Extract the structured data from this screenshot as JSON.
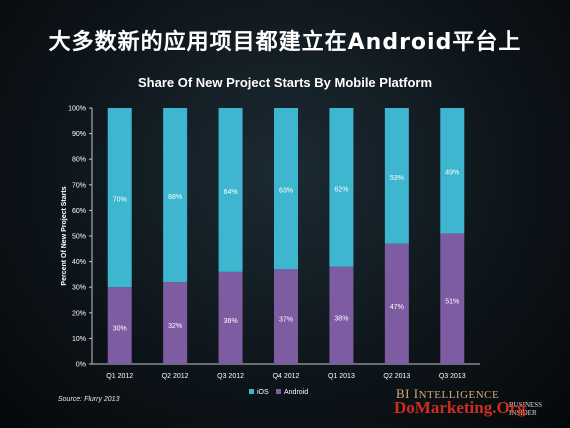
{
  "headline": "大多数新的应用项目都建立在Android平台上",
  "source": "Source: Flurry 2013",
  "branding": {
    "bi_logo_cap1": "BI",
    "bi_logo_word1": " I",
    "bi_logo_word1_rest": "NTELLIGENCE",
    "business_line1": "BUSINESS",
    "business_line2": "INSIDER",
    "watermark": "DoMarketing.Org"
  },
  "colors": {
    "ios": "#3fb6cf",
    "android": "#7d5ca1",
    "text": "#ffffff",
    "grid": "#ffffff"
  },
  "chart_data": {
    "type": "bar",
    "stacked": true,
    "title": "Share Of New Project Starts By Mobile Platform",
    "ylabel": "Percent Of New Project Starts",
    "xlabel": "",
    "ylim": [
      0,
      100
    ],
    "yticks": [
      "0%",
      "10%",
      "20%",
      "30%",
      "40%",
      "50%",
      "60%",
      "70%",
      "80%",
      "90%",
      "100%"
    ],
    "categories": [
      "Q1 2012",
      "Q2 2012",
      "Q3 2012",
      "Q4 2012",
      "Q1 2013",
      "Q2 2013",
      "Q3 2013"
    ],
    "series": [
      {
        "name": "Android",
        "values": [
          30,
          32,
          36,
          37,
          38,
          47,
          51
        ],
        "labels": [
          "30%",
          "32%",
          "36%",
          "37%",
          "38%",
          "47%",
          "51%"
        ]
      },
      {
        "name": "iOS",
        "values": [
          70,
          68,
          64,
          63,
          62,
          53,
          49
        ],
        "labels": [
          "70%",
          "68%",
          "64%",
          "63%",
          "62%",
          "53%",
          "49%"
        ]
      }
    ],
    "legend_position": "bottom"
  }
}
